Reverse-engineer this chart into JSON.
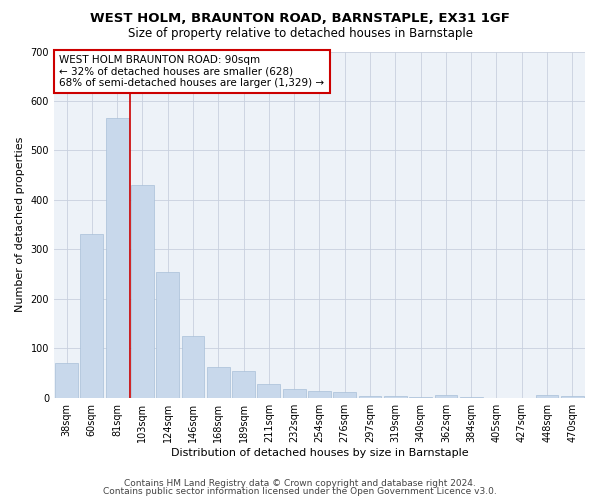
{
  "title": "WEST HOLM, BRAUNTON ROAD, BARNSTAPLE, EX31 1GF",
  "subtitle": "Size of property relative to detached houses in Barnstaple",
  "xlabel": "Distribution of detached houses by size in Barnstaple",
  "ylabel": "Number of detached properties",
  "categories": [
    "38sqm",
    "60sqm",
    "81sqm",
    "103sqm",
    "124sqm",
    "146sqm",
    "168sqm",
    "189sqm",
    "211sqm",
    "232sqm",
    "254sqm",
    "276sqm",
    "297sqm",
    "319sqm",
    "340sqm",
    "362sqm",
    "384sqm",
    "405sqm",
    "427sqm",
    "448sqm",
    "470sqm"
  ],
  "values": [
    70,
    330,
    565,
    430,
    255,
    125,
    63,
    55,
    28,
    18,
    14,
    12,
    3,
    3,
    2,
    5,
    1,
    0,
    0,
    5,
    3
  ],
  "bar_color": "#c8d8eb",
  "bar_edge_color": "#a8c0d8",
  "marker_line_index": 2,
  "marker_label1": "WEST HOLM BRAUNTON ROAD: 90sqm",
  "marker_label2": "← 32% of detached houses are smaller (628)",
  "marker_label3": "68% of semi-detached houses are larger (1,329) →",
  "annotation_box_color": "#ffffff",
  "annotation_box_edge_color": "#cc0000",
  "marker_line_color": "#cc0000",
  "grid_color": "#c8d0de",
  "background_color": "#edf2f8",
  "ylim": [
    0,
    700
  ],
  "yticks": [
    0,
    100,
    200,
    300,
    400,
    500,
    600,
    700
  ],
  "footer1": "Contains HM Land Registry data © Crown copyright and database right 2024.",
  "footer2": "Contains public sector information licensed under the Open Government Licence v3.0.",
  "title_fontsize": 9.5,
  "subtitle_fontsize": 8.5,
  "xlabel_fontsize": 8,
  "ylabel_fontsize": 8,
  "tick_fontsize": 7,
  "annot_fontsize": 7.5,
  "footer_fontsize": 6.5
}
